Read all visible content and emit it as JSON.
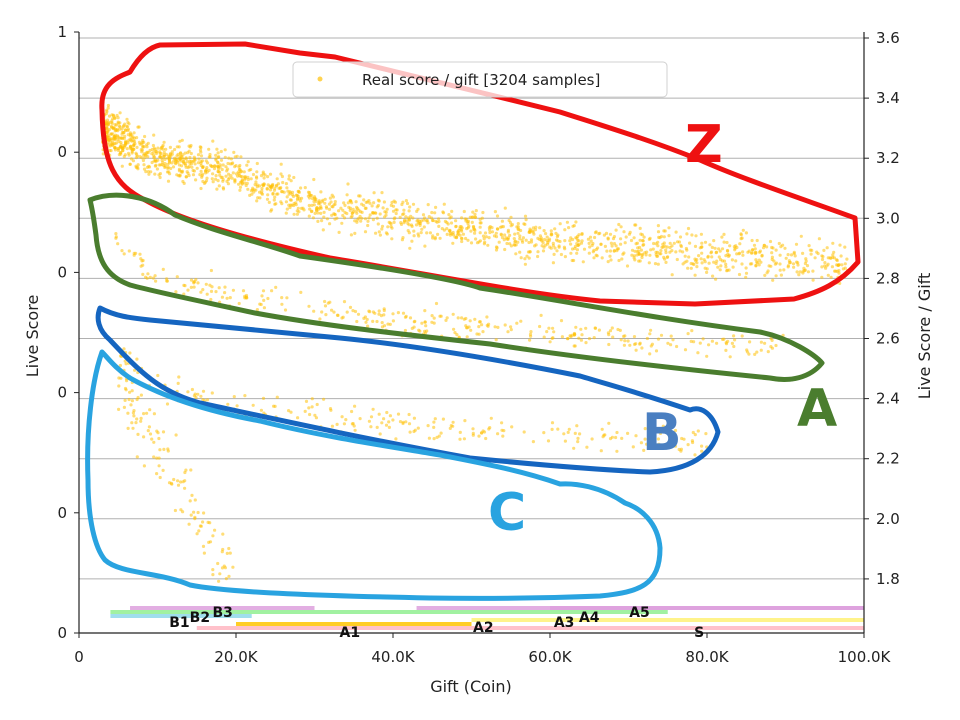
{
  "chart_data": {
    "type": "scatter",
    "title": "",
    "xlabel": "Gift (Coin)",
    "ylabel": "Live Score",
    "y2label": "Live Score / Gift",
    "xlim": [
      0,
      100000
    ],
    "ylim_right": [
      1.62,
      3.62
    ],
    "x_ticks": [
      "0",
      "20.0K",
      "40.0K",
      "60.0K",
      "80.0K",
      "100.0K"
    ],
    "y_left_ticks": [
      "0",
      "0",
      "0",
      "0",
      "0",
      "1"
    ],
    "y_right_ticks": [
      "1.8",
      "2.0",
      "2.2",
      "2.4",
      "2.6",
      "2.8",
      "3.0",
      "3.2",
      "3.4",
      "3.6"
    ],
    "legend": "Real score / gift [3204 samples]",
    "series_color": "#ffc107",
    "clusters": [
      {
        "label": "Z",
        "color": "#ee1111",
        "trend": [
          [
            3000,
            3.3
          ],
          [
            10000,
            3.2
          ],
          [
            20000,
            3.15
          ],
          [
            30000,
            3.05
          ],
          [
            40000,
            3.0
          ],
          [
            60000,
            2.93
          ],
          [
            80000,
            2.88
          ],
          [
            98000,
            2.85
          ]
        ]
      },
      {
        "label": "A",
        "color": "#4a7d2e",
        "trend": [
          [
            4000,
            2.95
          ],
          [
            10000,
            2.8
          ],
          [
            20000,
            2.74
          ],
          [
            40000,
            2.66
          ],
          [
            60000,
            2.62
          ],
          [
            90000,
            2.57
          ]
        ]
      },
      {
        "label": "B",
        "color": "#1565c0",
        "trend": [
          [
            4000,
            2.58
          ],
          [
            10000,
            2.44
          ],
          [
            20000,
            2.38
          ],
          [
            40000,
            2.32
          ],
          [
            60000,
            2.28
          ],
          [
            80000,
            2.26
          ]
        ]
      },
      {
        "label": "C",
        "color": "#29a3e0",
        "trend": [
          [
            5000,
            2.5
          ],
          [
            8000,
            2.3
          ],
          [
            12000,
            2.15
          ],
          [
            16000,
            1.95
          ],
          [
            20000,
            1.85
          ]
        ]
      }
    ],
    "bands": [
      {
        "label": "B1",
        "start": 4000,
        "end": 22000,
        "color": "#8fd8ea",
        "row": 3
      },
      {
        "label": "B2",
        "start": 4000,
        "end": 30000,
        "color": "#90ee90",
        "row": 2
      },
      {
        "label": "B3",
        "start": 6500,
        "end": 30000,
        "color": "#dda0dd",
        "row": 1
      },
      {
        "label": "A1",
        "start": 20000,
        "end": 50000,
        "color": "#ffc400",
        "row": 5
      },
      {
        "label": "A2",
        "start": 30000,
        "end": 75000,
        "color": "#90ee90",
        "row": 2
      },
      {
        "label": "A3",
        "start": 43000,
        "end": 100000,
        "color": "#dda0dd",
        "row": 1
      },
      {
        "label": "A4",
        "start": 50000,
        "end": 100000,
        "color": "#fff176",
        "row": 4
      },
      {
        "label": "A5",
        "start": 60000,
        "end": 100000,
        "color": "#dda0dd",
        "row": 1
      },
      {
        "label": "S",
        "start": 15000,
        "end": 100000,
        "color": "#ffb6c1",
        "row": 6
      }
    ],
    "band_label_positions": [
      {
        "label": "B1",
        "x": 12800,
        "row": 3
      },
      {
        "label": "B2",
        "x": 15400,
        "row": 2
      },
      {
        "label": "B3",
        "x": 18300,
        "row": 1
      },
      {
        "label": "A1",
        "x": 34500,
        "row": 5
      },
      {
        "label": "A2",
        "x": 51500,
        "row": 4
      },
      {
        "label": "A3",
        "x": 61800,
        "row": 3
      },
      {
        "label": "A4",
        "x": 65000,
        "row": 2
      },
      {
        "label": "A5",
        "x": 71400,
        "row": 1
      },
      {
        "label": "S",
        "x": 79000,
        "row": 5
      }
    ]
  }
}
